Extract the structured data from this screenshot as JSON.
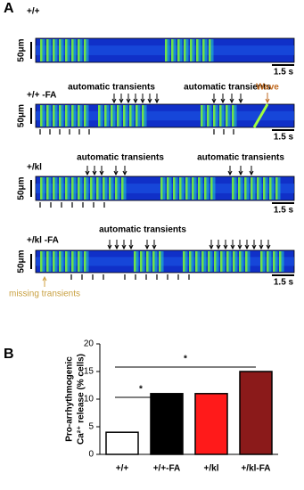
{
  "panel_a": {
    "label": "A",
    "rows": [
      {
        "genotype": "+/+",
        "scale_y": "50μm",
        "scale_x": "1.5 s",
        "annotations": []
      },
      {
        "genotype": "+/+ -FA",
        "scale_y": "50μm",
        "scale_x": "1.5 s",
        "annotations": [
          "automatic transients",
          "automatic transients",
          "Wave"
        ]
      },
      {
        "genotype": "+/kl",
        "scale_y": "50μm",
        "scale_x": "1.5 s",
        "annotations": [
          "automatic transients",
          "automatic transients"
        ]
      },
      {
        "genotype": "+/kl -FA",
        "scale_y": "50μm",
        "scale_x": "1.5 s",
        "annotations": [
          "automatic transients"
        ]
      }
    ],
    "missing": "missing transients"
  },
  "panel_b": {
    "label": "B"
  },
  "chart_data": {
    "type": "bar",
    "ylabel": [
      "Pro-arrhythmogenic",
      "Ca²⁺ release (% cells)"
    ],
    "categories": [
      "+/+",
      "+/+-FA",
      "+/kl",
      "+/kl-FA"
    ],
    "values": [
      4,
      11,
      11,
      15
    ],
    "colors": [
      "#ffffff",
      "#000000",
      "#ff1a1a",
      "#8b1a1a"
    ],
    "ylim": [
      0,
      20
    ],
    "yticks": [
      0,
      5,
      10,
      15,
      20
    ],
    "annotations": [
      "*",
      "*"
    ]
  }
}
